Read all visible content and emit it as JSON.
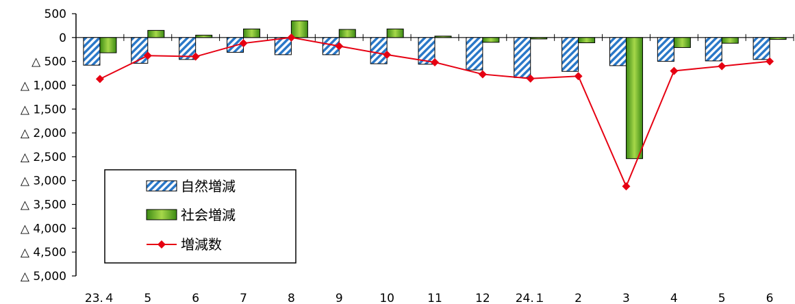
{
  "chart_data": {
    "type": "bar",
    "categories": [
      "23.４",
      "5",
      "6",
      "7",
      "8",
      "9",
      "10",
      "11",
      "12",
      "24.１",
      "2",
      "3",
      "4",
      "5",
      "6"
    ],
    "y_tick_labels": [
      "500",
      "0",
      "△ 500",
      "△ 1,000",
      "△ 1,500",
      "△ 2,000",
      "△ 2,500",
      "△ 3,000",
      "△ 3,500",
      "△ 4,000",
      "△ 4,500",
      "△ 5,000"
    ],
    "y_ticks": [
      500,
      0,
      -500,
      -1000,
      -1500,
      -2000,
      -2500,
      -3000,
      -3500,
      -4000,
      -4500,
      -5000
    ],
    "ylim": [
      -5000,
      500
    ],
    "grid": false,
    "legend_position": "bottom-left",
    "series": [
      {
        "name": "自然増減",
        "kind": "bar",
        "pattern": "blue-diagonal-hatch",
        "values": [
          -580,
          -540,
          -460,
          -310,
          -360,
          -360,
          -550,
          -560,
          -680,
          -840,
          -710,
          -590,
          -500,
          -490,
          -460
        ]
      },
      {
        "name": "社会増減",
        "kind": "bar",
        "pattern": "green-gradient",
        "values": [
          -320,
          150,
          50,
          180,
          350,
          170,
          180,
          30,
          -100,
          -30,
          -110,
          -2540,
          -210,
          -120,
          -40
        ]
      },
      {
        "name": "増減数",
        "kind": "line",
        "color": "#e60012",
        "marker": "diamond",
        "values": [
          -870,
          -380,
          -400,
          -120,
          0,
          -180,
          -360,
          -520,
          -770,
          -860,
          -810,
          -3120,
          -700,
          -600,
          -500
        ]
      }
    ]
  }
}
